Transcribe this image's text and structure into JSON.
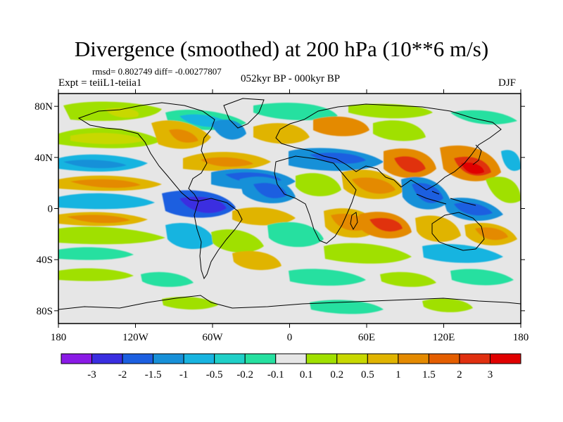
{
  "title": "Divergence (smoothed) at 200 hPa (10**6 m/s)",
  "stats": "rmsd= 0.802749 diff= -0.00277807",
  "experiment": "Expt = teiiL1-teiia1",
  "period": "052kyr BP - 000kyr BP",
  "season": "DJF",
  "map": {
    "lon_range": [
      -180,
      180
    ],
    "lat_range": [
      -90,
      90
    ],
    "x_tick_labels": [
      "180",
      "120W",
      "60W",
      "0",
      "60E",
      "120E",
      "180"
    ],
    "y_tick_labels": [
      "80N",
      "40N",
      "0",
      "40S",
      "80S"
    ]
  },
  "colorbar": {
    "labels": [
      "-3",
      "-2",
      "-1.5",
      "-1",
      "-0.5",
      "-0.2",
      "-0.1",
      "0.1",
      "0.2",
      "0.5",
      "1",
      "1.5",
      "2",
      "3"
    ],
    "colors": [
      "#8a1ae6",
      "#3a2ee0",
      "#1c5fe0",
      "#1790d8",
      "#18b4e0",
      "#20d0c8",
      "#26e0a0",
      "#e6e6e6",
      "#a0e000",
      "#c8d800",
      "#e0b400",
      "#e48a00",
      "#e45e00",
      "#e03010",
      "#e00000"
    ]
  }
}
